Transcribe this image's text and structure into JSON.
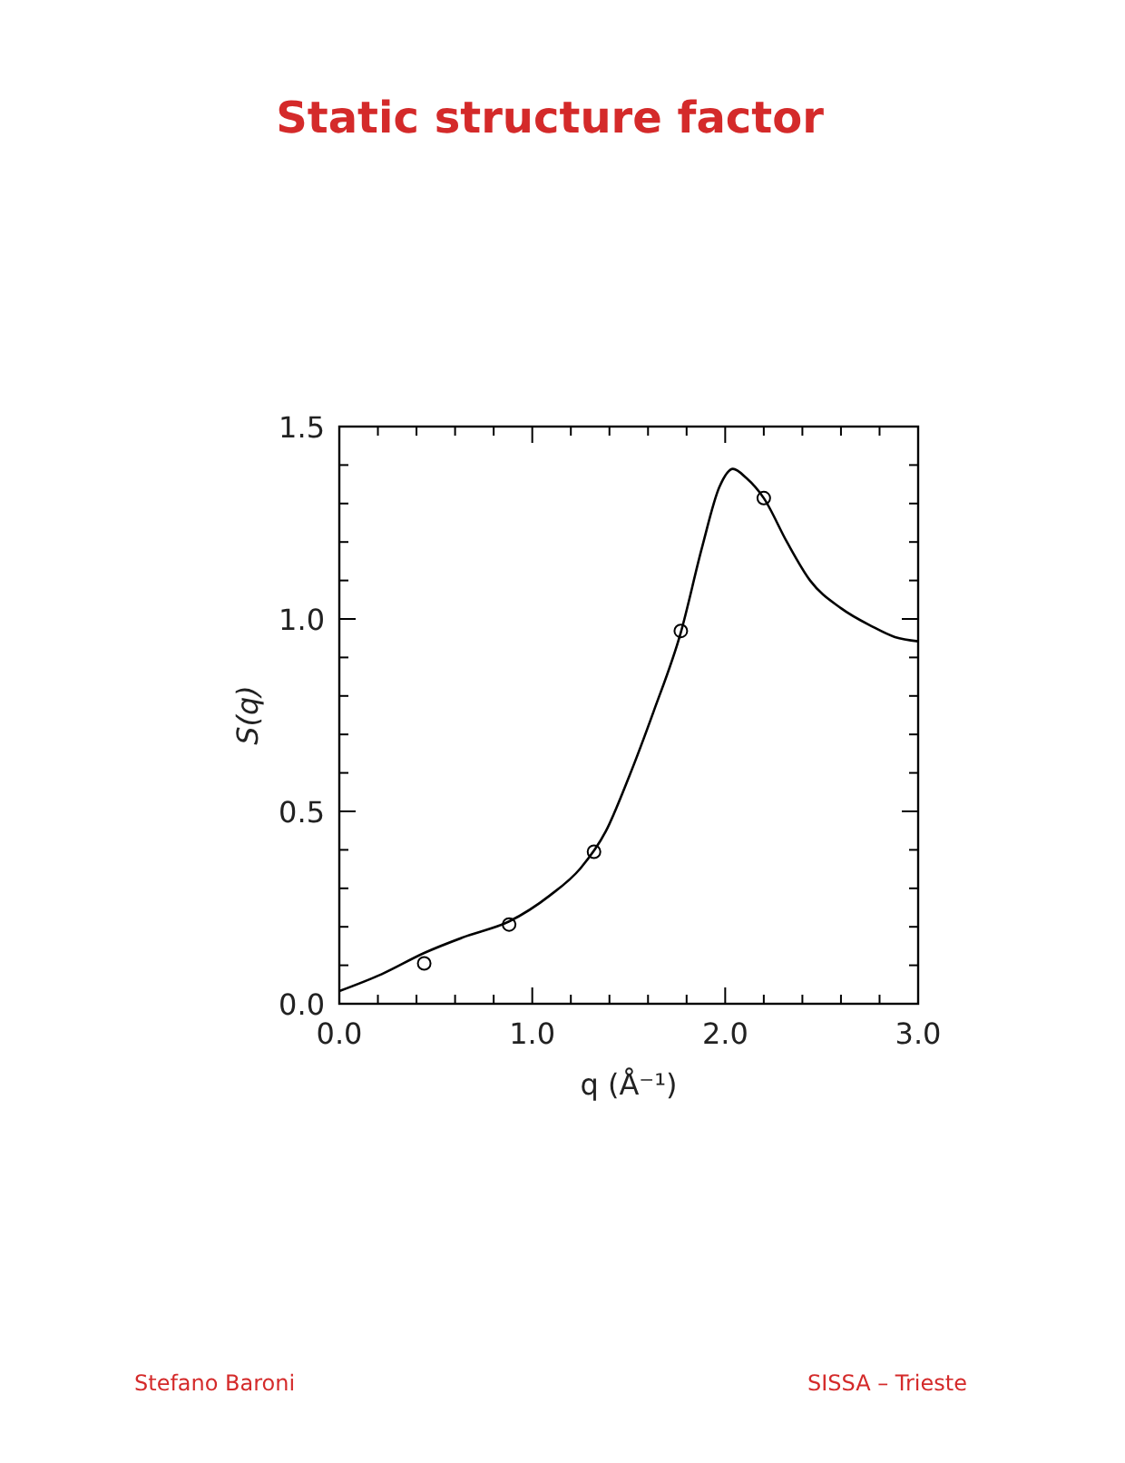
{
  "chart_data": {
    "type": "line",
    "title": "Static structure factor",
    "xlabel": "q (Å⁻¹)",
    "ylabel": "S(q)",
    "annotations": [
      "Stefano Baroni",
      "SISSA – Trieste"
    ],
    "xlim": [
      0,
      3
    ],
    "ylim": [
      0,
      1.5
    ],
    "xticks": [
      {
        "value": 0,
        "label": "0.0"
      },
      {
        "value": 0.2,
        "label": null
      },
      {
        "value": 0.4,
        "label": null
      },
      {
        "value": 0.6,
        "label": null
      },
      {
        "value": 0.8,
        "label": null
      },
      {
        "value": 1,
        "label": "1.0"
      },
      {
        "value": 1.2,
        "label": null
      },
      {
        "value": 1.4,
        "label": null
      },
      {
        "value": 1.6,
        "label": null
      },
      {
        "value": 1.8,
        "label": null
      },
      {
        "value": 2,
        "label": "2.0"
      },
      {
        "value": 2.2,
        "label": null
      },
      {
        "value": 2.4,
        "label": null
      },
      {
        "value": 2.6,
        "label": null
      },
      {
        "value": 2.8,
        "label": null
      },
      {
        "value": 3,
        "label": "3.0"
      }
    ],
    "yticks": [
      {
        "value": 0,
        "label": "0.0"
      },
      {
        "value": 0.1,
        "label": null
      },
      {
        "value": 0.2,
        "label": null
      },
      {
        "value": 0.3,
        "label": null
      },
      {
        "value": 0.4,
        "label": null
      },
      {
        "value": 0.5,
        "label": "0.5"
      },
      {
        "value": 0.6,
        "label": null
      },
      {
        "value": 0.7,
        "label": null
      },
      {
        "value": 0.8,
        "label": null
      },
      {
        "value": 0.9,
        "label": null
      },
      {
        "value": 1,
        "label": "1.0"
      },
      {
        "value": 1.1,
        "label": null
      },
      {
        "value": 1.2,
        "label": null
      },
      {
        "value": 1.3,
        "label": null
      },
      {
        "value": 1.4,
        "label": null
      },
      {
        "value": 1.5,
        "label": "1.5"
      }
    ],
    "grid": false,
    "series": [
      {
        "color": "#000000",
        "marker": "none",
        "line_style": "solid",
        "x": [
          0,
          0.22,
          0.44,
          0.66,
          0.88,
          1.09,
          1.25,
          1.38,
          1.5,
          1.63,
          1.77,
          1.88,
          1.97,
          2.04,
          2.11,
          2.2,
          2.32,
          2.44,
          2.6,
          2.76,
          2.88,
          3.0
        ],
        "values": [
          0.033,
          0.077,
          0.132,
          0.176,
          0.214,
          0.281,
          0.352,
          0.447,
          0.588,
          0.761,
          0.965,
          1.186,
          1.343,
          1.39,
          1.366,
          1.314,
          1.2,
          1.1,
          1.028,
          0.981,
          0.953,
          0.942
        ]
      },
      {
        "type": "scatter",
        "color": "#000000",
        "marker": "circle",
        "x": [
          0.44,
          0.88,
          1.32,
          1.77,
          2.2
        ],
        "values": [
          0.105,
          0.206,
          0.395,
          0.969,
          1.314
        ]
      }
    ]
  }
}
